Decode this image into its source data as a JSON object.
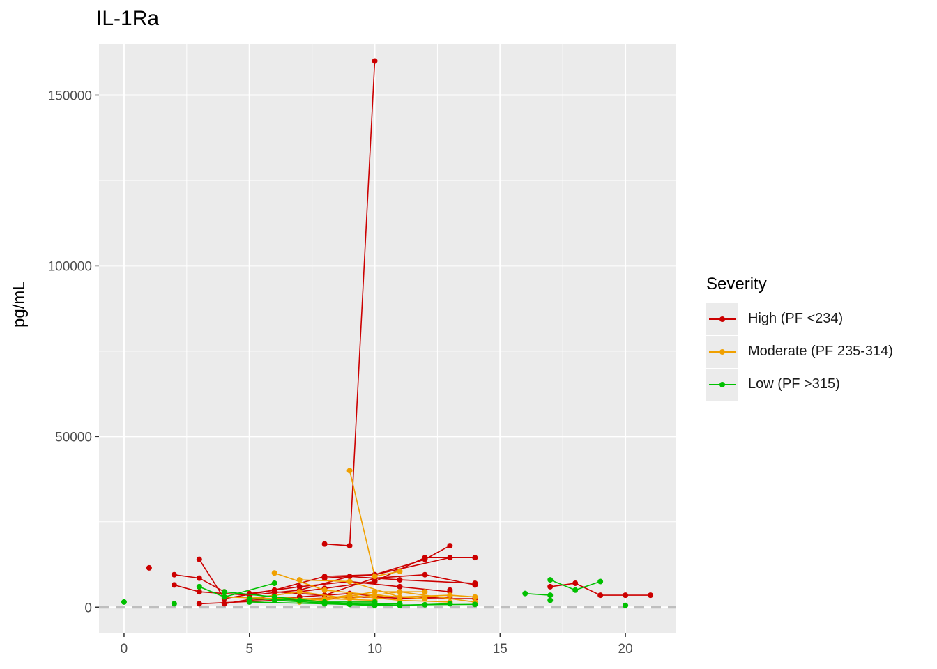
{
  "chart_data": {
    "type": "line",
    "title": "IL-1Ra",
    "xlabel": "",
    "ylabel": "pg/mL",
    "xlim": [
      -1,
      22
    ],
    "ylim": [
      -7500,
      165000
    ],
    "x_ticks": [
      0,
      5,
      10,
      15,
      20
    ],
    "y_ticks": [
      0,
      50000,
      100000,
      150000
    ],
    "grid": true,
    "reference_line": {
      "y": 0,
      "style": "dashed",
      "color": "#bebebe"
    },
    "legend": {
      "title": "Severity",
      "placement": "right"
    },
    "series": [
      {
        "name": "High (PF <234)",
        "color": "#cc0000",
        "trajectories": [
          [
            [
              8,
              18500
            ],
            [
              9,
              18000
            ],
            [
              10,
              160000
            ]
          ],
          [
            [
              2,
              9500
            ],
            [
              3,
              8500
            ],
            [
              4,
              4500
            ]
          ],
          [
            [
              3,
              14000
            ],
            [
              4,
              2500
            ],
            [
              6,
              5000
            ],
            [
              8,
              9000
            ],
            [
              10,
              9500
            ],
            [
              12,
              14000
            ],
            [
              13,
              18000
            ]
          ],
          [
            [
              2,
              6500
            ],
            [
              3,
              4500
            ],
            [
              5,
              3500
            ],
            [
              7,
              5000
            ],
            [
              9,
              9000
            ],
            [
              11,
              8000
            ],
            [
              14,
              7000
            ]
          ],
          [
            [
              3,
              1000
            ],
            [
              6,
              2000
            ],
            [
              9,
              3000
            ],
            [
              12,
              2500
            ],
            [
              14,
              2500
            ]
          ],
          [
            [
              4,
              1000
            ],
            [
              6,
              3500
            ],
            [
              8,
              5500
            ],
            [
              10,
              7500
            ],
            [
              12,
              14500
            ],
            [
              14,
              14500
            ]
          ],
          [
            [
              5,
              4000
            ],
            [
              7,
              6000
            ],
            [
              9,
              7500
            ],
            [
              11,
              6000
            ],
            [
              13,
              4500
            ]
          ],
          [
            [
              6,
              4500
            ],
            [
              8,
              3500
            ],
            [
              10,
              8500
            ],
            [
              12,
              9500
            ],
            [
              14,
              6500
            ]
          ],
          [
            [
              5,
              2000
            ],
            [
              7,
              3000
            ],
            [
              9,
              4000
            ],
            [
              11,
              2500
            ],
            [
              13,
              3000
            ]
          ],
          [
            [
              8,
              8500
            ],
            [
              10,
              9500
            ],
            [
              13,
              14500
            ]
          ],
          [
            [
              17,
              6000
            ],
            [
              18,
              7000
            ],
            [
              19,
              3500
            ],
            [
              20,
              3500
            ],
            [
              21,
              3500
            ]
          ],
          [
            [
              1,
              11500
            ]
          ],
          [
            [
              13,
              5000
            ]
          ]
        ]
      },
      {
        "name": "Moderate (PF 235-314)",
        "color": "#f0a000",
        "trajectories": [
          [
            [
              9,
              40000
            ],
            [
              10,
              9000
            ],
            [
              11,
              10500
            ]
          ],
          [
            [
              6,
              10000
            ],
            [
              8,
              5000
            ],
            [
              10,
              3500
            ],
            [
              12,
              2500
            ]
          ],
          [
            [
              7,
              8000
            ],
            [
              9,
              7500
            ],
            [
              11,
              3000
            ],
            [
              13,
              3500
            ],
            [
              14,
              3000
            ]
          ],
          [
            [
              5,
              2500
            ],
            [
              7,
              4500
            ],
            [
              9,
              2500
            ],
            [
              11,
              4500
            ],
            [
              14,
              1500
            ]
          ],
          [
            [
              6,
              3000
            ],
            [
              8,
              2000
            ],
            [
              10,
              4500
            ],
            [
              12,
              4500
            ]
          ],
          [
            [
              4,
              3000
            ],
            [
              6,
              2500
            ],
            [
              8,
              2500
            ],
            [
              10,
              2000
            ]
          ],
          [
            [
              7,
              1500
            ],
            [
              9,
              3500
            ],
            [
              11,
              2000
            ],
            [
              13,
              1500
            ]
          ]
        ]
      },
      {
        "name": "Low (PF >315)",
        "color": "#00c000",
        "trajectories": [
          [
            [
              3,
              6000
            ],
            [
              4,
              3000
            ],
            [
              6,
              7000
            ]
          ],
          [
            [
              4,
              4500
            ],
            [
              6,
              3000
            ],
            [
              8,
              1500
            ],
            [
              10,
              1500
            ]
          ],
          [
            [
              5,
              2500
            ],
            [
              7,
              2000
            ],
            [
              9,
              1000
            ],
            [
              11,
              500
            ],
            [
              13,
              1000
            ]
          ],
          [
            [
              5,
              1500
            ],
            [
              8,
              1000
            ],
            [
              10,
              500
            ],
            [
              12,
              700
            ],
            [
              14,
              800
            ]
          ],
          [
            [
              6,
              2000
            ],
            [
              9,
              800
            ],
            [
              11,
              1000
            ]
          ],
          [
            [
              16,
              4000
            ],
            [
              17,
              3500
            ]
          ],
          [
            [
              17,
              8000
            ],
            [
              18,
              5000
            ],
            [
              19,
              7500
            ]
          ],
          [
            [
              0,
              1500
            ]
          ],
          [
            [
              2,
              1000
            ]
          ],
          [
            [
              17,
              2000
            ]
          ],
          [
            [
              20,
              500
            ]
          ]
        ]
      }
    ]
  }
}
